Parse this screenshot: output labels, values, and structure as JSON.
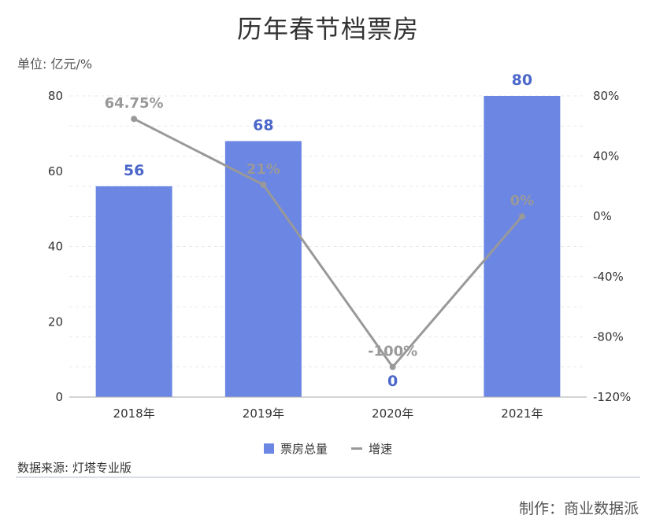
{
  "title": "历年春节档票房",
  "unit_label": "单位: 亿元/%",
  "source": "数据来源: 灯塔专业版",
  "credit": "制作：商业数据派",
  "colors": {
    "bar": "#6b86e3",
    "line": "#999999",
    "bar_label": "#4a67c9",
    "line_label": "#999999"
  },
  "chart_data": {
    "type": "bar+line",
    "categories": [
      "2018年",
      "2019年",
      "2020年",
      "2021年"
    ],
    "series": [
      {
        "name": "票房总量",
        "type": "bar",
        "axis": "left",
        "values": [
          56,
          68,
          0,
          80
        ],
        "labels": [
          "56",
          "68",
          "0",
          "80"
        ]
      },
      {
        "name": "增速",
        "type": "line",
        "axis": "right",
        "values": [
          64.75,
          21,
          -100,
          0
        ],
        "labels": [
          "64.75%",
          "21%",
          "-100%",
          "0%"
        ]
      }
    ],
    "y_left": {
      "min": 0,
      "max": 80,
      "ticks": [
        "0",
        "20",
        "40",
        "60",
        "80"
      ]
    },
    "y_right": {
      "min": -120,
      "max": 80,
      "ticks": [
        "-120%",
        "-80%",
        "-40%",
        "0%",
        "40%",
        "80%"
      ]
    },
    "legend": [
      "票房总量",
      "增速"
    ]
  }
}
